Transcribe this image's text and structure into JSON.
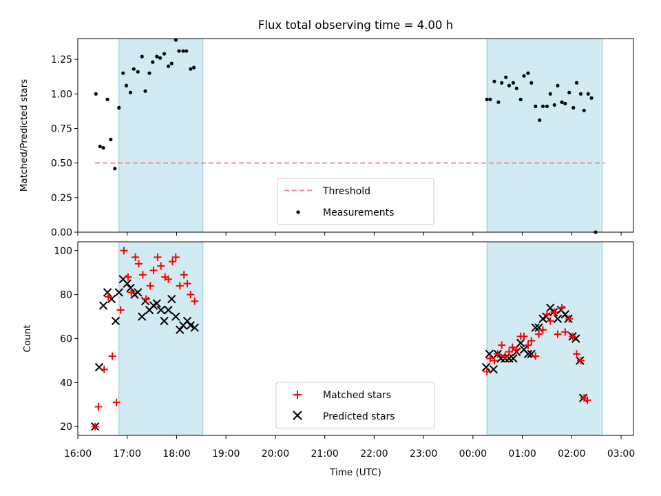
{
  "chart_data": [
    {
      "type": "scatter",
      "title": "Flux total observing time = 4.00 h",
      "ylabel": "Matched/Predicted stars",
      "xlabel": "",
      "xlim": [
        "16:00",
        "03:15"
      ],
      "ylim": [
        0,
        1.4
      ],
      "yticks": [
        "0.00",
        "0.25",
        "0.50",
        "0.75",
        "1.00",
        "1.25"
      ],
      "shaded_intervals": [
        [
          "16:50",
          "18:32"
        ],
        [
          "00:17",
          "02:37"
        ]
      ],
      "threshold": {
        "name": "Threshold",
        "value": 0.5,
        "x_start": "16:21",
        "x_end": "02:40",
        "color": "#f08080"
      },
      "series": [
        {
          "name": "Measurements",
          "color": "#000000",
          "points": [
            [
              "16:22",
              1.0
            ],
            [
              "16:27",
              0.62
            ],
            [
              "16:31",
              0.61
            ],
            [
              "16:36",
              0.96
            ],
            [
              "16:40",
              0.67
            ],
            [
              "16:45",
              0.46
            ],
            [
              "16:50",
              0.9
            ],
            [
              "16:55",
              1.15
            ],
            [
              "16:59",
              1.06
            ],
            [
              "17:04",
              1.01
            ],
            [
              "17:08",
              1.18
            ],
            [
              "17:13",
              1.16
            ],
            [
              "17:18",
              1.27
            ],
            [
              "17:22",
              1.02
            ],
            [
              "17:27",
              1.15
            ],
            [
              "17:31",
              1.23
            ],
            [
              "17:36",
              1.27
            ],
            [
              "17:40",
              1.26
            ],
            [
              "17:45",
              1.29
            ],
            [
              "17:50",
              1.2
            ],
            [
              "17:54",
              1.22
            ],
            [
              "17:59",
              1.39
            ],
            [
              "18:03",
              1.31
            ],
            [
              "18:08",
              1.31
            ],
            [
              "18:12",
              1.31
            ],
            [
              "18:17",
              1.18
            ],
            [
              "18:21",
              1.19
            ],
            [
              "00:17",
              0.96
            ],
            [
              "00:21",
              0.96
            ],
            [
              "00:26",
              1.09
            ],
            [
              "00:31",
              0.94
            ],
            [
              "00:35",
              1.08
            ],
            [
              "00:40",
              1.12
            ],
            [
              "00:44",
              1.06
            ],
            [
              "00:49",
              1.08
            ],
            [
              "00:53",
              1.04
            ],
            [
              "00:58",
              0.96
            ],
            [
              "01:02",
              1.13
            ],
            [
              "01:07",
              1.15
            ],
            [
              "01:11",
              1.08
            ],
            [
              "01:16",
              0.91
            ],
            [
              "01:21",
              0.81
            ],
            [
              "01:25",
              0.91
            ],
            [
              "01:30",
              0.91
            ],
            [
              "01:34",
              1.0
            ],
            [
              "01:39",
              0.92
            ],
            [
              "01:43",
              1.06
            ],
            [
              "01:48",
              0.94
            ],
            [
              "01:52",
              0.93
            ],
            [
              "01:57",
              1.01
            ],
            [
              "02:02",
              0.9
            ],
            [
              "02:06",
              1.08
            ],
            [
              "02:11",
              1.0
            ],
            [
              "02:15",
              0.88
            ],
            [
              "02:20",
              1.0
            ],
            [
              "02:24",
              0.97
            ],
            [
              "02:29",
              0.0
            ]
          ]
        }
      ],
      "legend": {
        "position": "lower center",
        "entries": [
          "Threshold",
          "Measurements"
        ]
      }
    },
    {
      "type": "scatter",
      "title": "",
      "ylabel": "Count",
      "xlabel": "Time (UTC)",
      "xlim": [
        "16:00",
        "03:15"
      ],
      "ylim": [
        16,
        104
      ],
      "yticks": [
        "20",
        "40",
        "60",
        "80",
        "100"
      ],
      "xticks": [
        "16:00",
        "17:00",
        "18:00",
        "19:00",
        "20:00",
        "21:00",
        "22:00",
        "23:00",
        "00:00",
        "01:00",
        "02:00",
        "03:00"
      ],
      "shaded_intervals": [
        [
          "16:50",
          "18:32"
        ],
        [
          "00:17",
          "02:37"
        ]
      ],
      "series": [
        {
          "name": "Matched stars",
          "marker": "plus",
          "color": "#ff0000",
          "points": [
            [
              "16:21",
              20
            ],
            [
              "16:25",
              29
            ],
            [
              "16:32",
              46
            ],
            [
              "16:37",
              79
            ],
            [
              "16:42",
              52
            ],
            [
              "16:47",
              31
            ],
            [
              "16:52",
              73
            ],
            [
              "16:56",
              100
            ],
            [
              "17:01",
              88
            ],
            [
              "17:05",
              81
            ],
            [
              "17:10",
              97
            ],
            [
              "17:14",
              94
            ],
            [
              "17:19",
              89
            ],
            [
              "17:23",
              78
            ],
            [
              "17:28",
              84
            ],
            [
              "17:32",
              91
            ],
            [
              "17:37",
              97
            ],
            [
              "17:41",
              93
            ],
            [
              "17:46",
              88
            ],
            [
              "17:50",
              87
            ],
            [
              "17:55",
              95
            ],
            [
              "17:59",
              97
            ],
            [
              "18:04",
              84
            ],
            [
              "18:09",
              89
            ],
            [
              "18:13",
              85
            ],
            [
              "18:17",
              80
            ],
            [
              "18:22",
              77
            ],
            [
              "00:17",
              45
            ],
            [
              "00:21",
              51
            ],
            [
              "00:26",
              50
            ],
            [
              "00:30",
              53
            ],
            [
              "00:35",
              57
            ],
            [
              "00:39",
              52
            ],
            [
              "00:44",
              54
            ],
            [
              "00:48",
              56
            ],
            [
              "00:53",
              55
            ],
            [
              "00:58",
              61
            ],
            [
              "01:02",
              61
            ],
            [
              "01:07",
              57
            ],
            [
              "01:11",
              59
            ],
            [
              "01:16",
              52
            ],
            [
              "01:20",
              62
            ],
            [
              "01:25",
              64
            ],
            [
              "01:30",
              71
            ],
            [
              "01:34",
              68
            ],
            [
              "01:39",
              72
            ],
            [
              "01:43",
              62
            ],
            [
              "01:48",
              74
            ],
            [
              "01:52",
              63
            ],
            [
              "01:57",
              69
            ],
            [
              "02:01",
              61
            ],
            [
              "02:06",
              53
            ],
            [
              "02:11",
              50
            ],
            [
              "02:15",
              33
            ],
            [
              "02:19",
              32
            ]
          ]
        },
        {
          "name": "Predicted stars",
          "marker": "x",
          "color": "#000000",
          "points": [
            [
              "16:21",
              20
            ],
            [
              "16:26",
              47
            ],
            [
              "16:31",
              75
            ],
            [
              "16:36",
              81
            ],
            [
              "16:41",
              78
            ],
            [
              "16:46",
              68
            ],
            [
              "16:50",
              81
            ],
            [
              "16:55",
              87
            ],
            [
              "17:00",
              85
            ],
            [
              "17:04",
              83
            ],
            [
              "17:09",
              80
            ],
            [
              "17:13",
              81
            ],
            [
              "17:18",
              70
            ],
            [
              "17:22",
              77
            ],
            [
              "17:27",
              73
            ],
            [
              "17:32",
              75
            ],
            [
              "17:36",
              76
            ],
            [
              "17:41",
              73
            ],
            [
              "17:45",
              68
            ],
            [
              "17:50",
              73
            ],
            [
              "17:54",
              78
            ],
            [
              "17:59",
              70
            ],
            [
              "18:04",
              64
            ],
            [
              "18:08",
              66
            ],
            [
              "18:13",
              68
            ],
            [
              "18:17",
              66
            ],
            [
              "18:22",
              65
            ],
            [
              "00:16",
              47
            ],
            [
              "00:20",
              53
            ],
            [
              "00:25",
              46
            ],
            [
              "00:30",
              53
            ],
            [
              "00:34",
              51
            ],
            [
              "00:39",
              51
            ],
            [
              "00:44",
              51
            ],
            [
              "00:49",
              51
            ],
            [
              "00:53",
              54
            ],
            [
              "00:58",
              58
            ],
            [
              "01:02",
              55
            ],
            [
              "01:07",
              53
            ],
            [
              "01:11",
              53
            ],
            [
              "01:16",
              65
            ],
            [
              "01:20",
              65
            ],
            [
              "01:25",
              69
            ],
            [
              "01:29",
              70
            ],
            [
              "01:34",
              74
            ],
            [
              "01:38",
              72
            ],
            [
              "01:43",
              69
            ],
            [
              "01:47",
              73
            ],
            [
              "01:52",
              71
            ],
            [
              "01:56",
              69
            ],
            [
              "02:01",
              61
            ],
            [
              "02:05",
              60
            ],
            [
              "02:10",
              50
            ],
            [
              "02:14",
              33
            ]
          ]
        }
      ],
      "legend": {
        "position": "lower center",
        "entries": [
          "Matched stars",
          "Predicted stars"
        ]
      }
    }
  ]
}
